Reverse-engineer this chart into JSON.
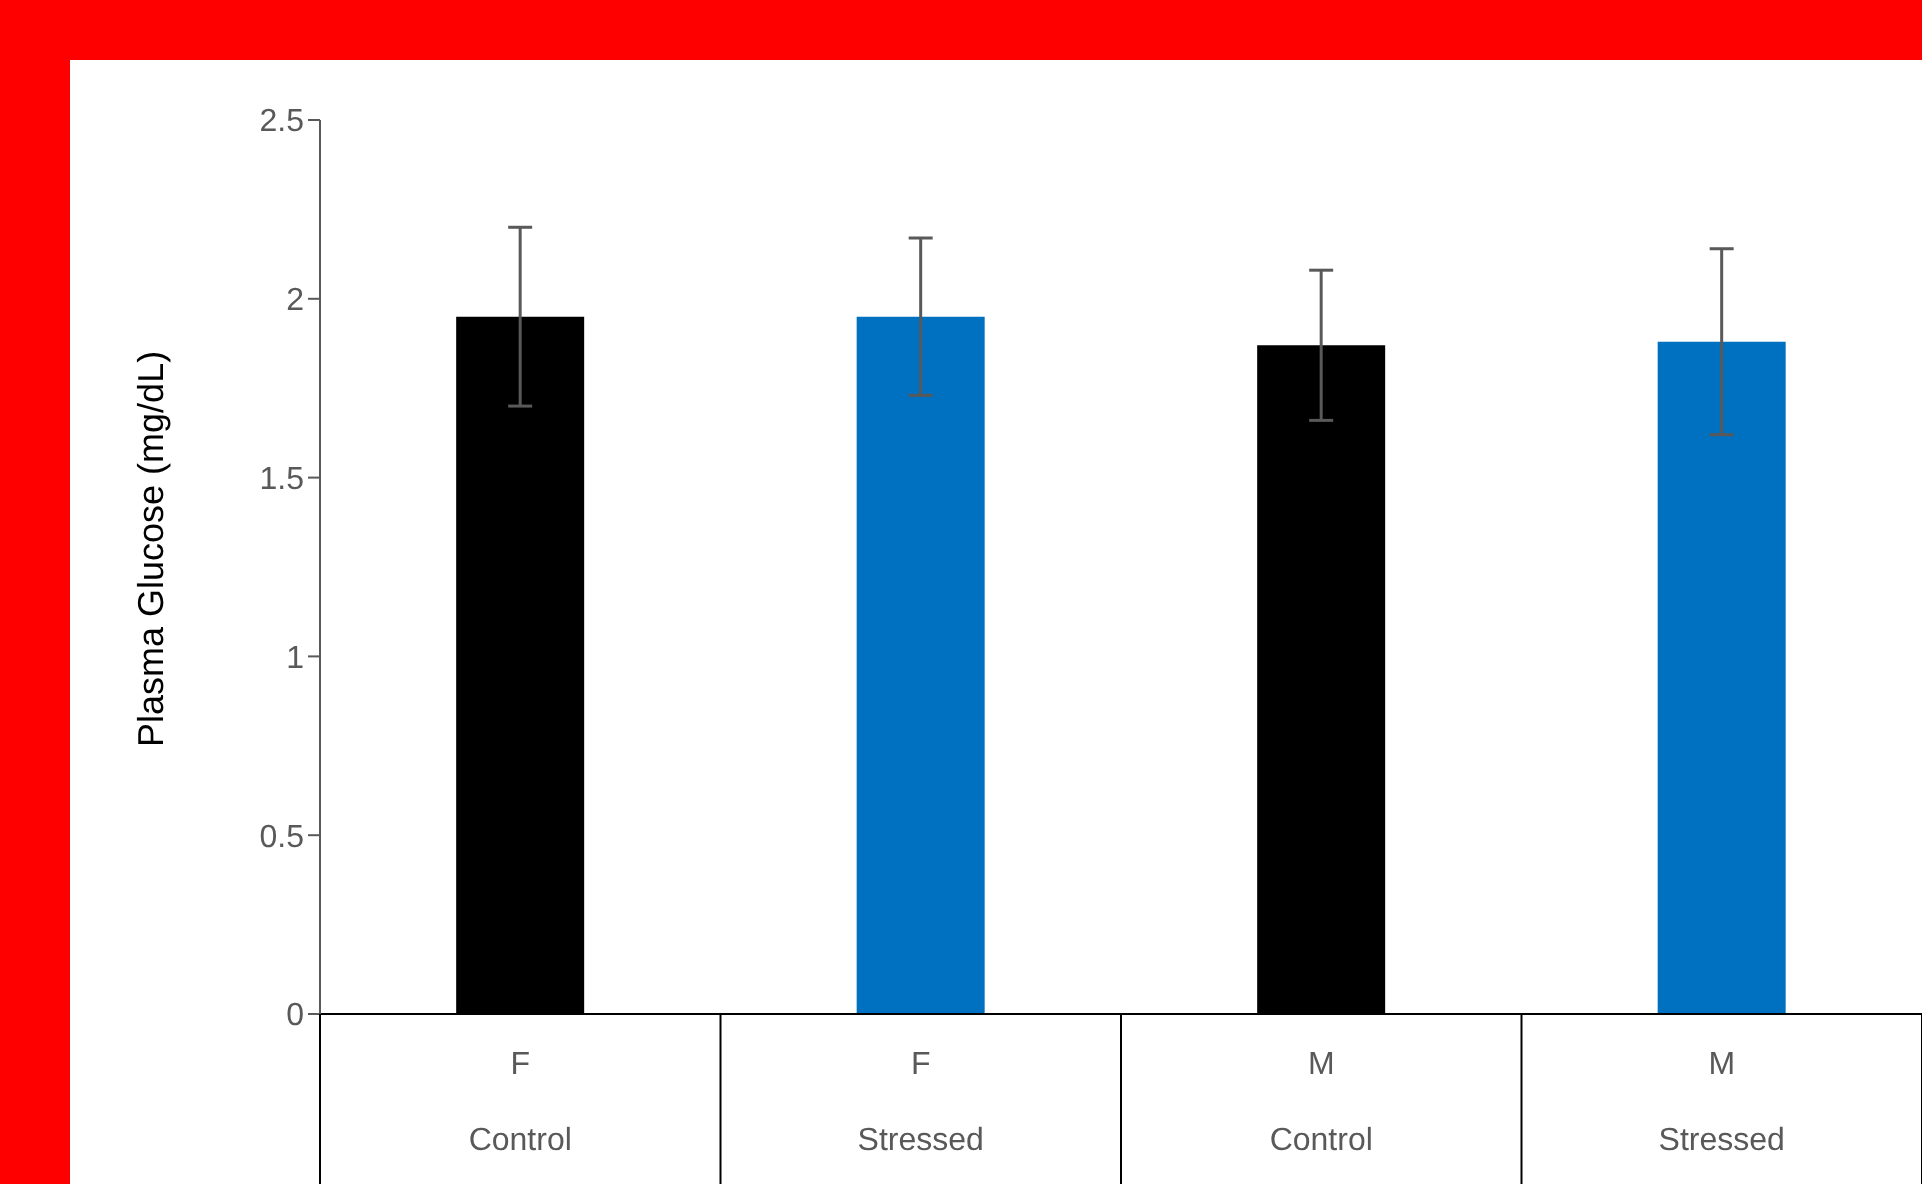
{
  "chart_data": {
    "type": "bar",
    "ylabel": "Plasma Glucose (mg/dL)",
    "categories": [
      "F\nControl",
      "F\nStressed",
      "M\nControl",
      "M\nStressed"
    ],
    "values": [
      1.95,
      1.95,
      1.87,
      1.88
    ],
    "colors": [
      "#000000",
      "#0070c0",
      "#000000",
      "#0070c0"
    ],
    "errors": [
      0.25,
      0.22,
      0.21,
      0.26
    ],
    "ylim": [
      0,
      2.5
    ],
    "yticks": [
      0,
      0.5,
      1,
      1.5,
      2,
      2.5
    ],
    "grid": false,
    "legend": false
  }
}
